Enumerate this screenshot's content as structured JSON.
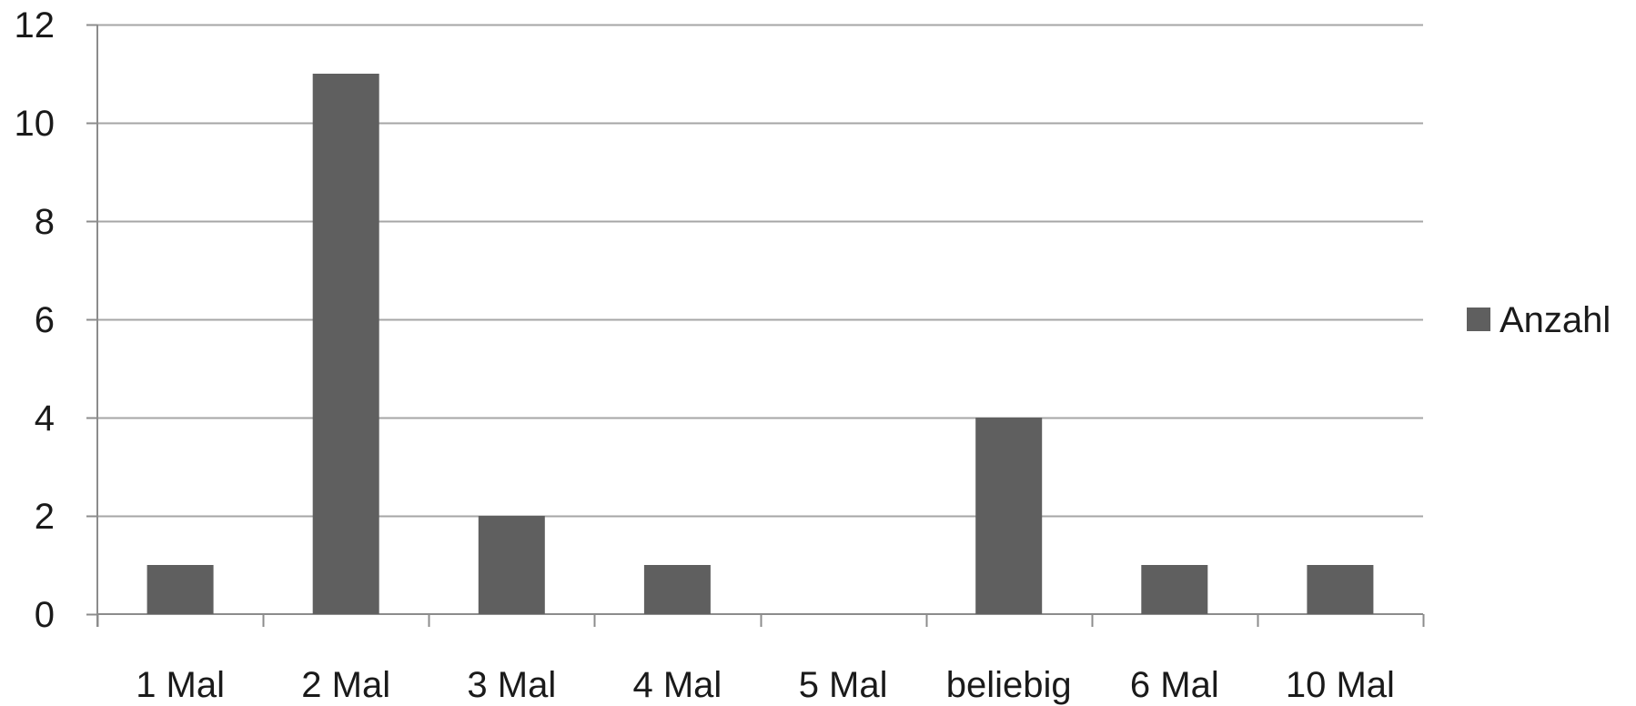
{
  "chart_data": {
    "type": "bar",
    "categories": [
      "1 Mal",
      "2 Mal",
      "3 Mal",
      "4 Mal",
      "5 Mal",
      "beliebig",
      "6 Mal",
      "10 Mal"
    ],
    "series": [
      {
        "name": "Anzahl",
        "values": [
          1,
          11,
          2,
          1,
          0,
          4,
          1,
          1
        ],
        "color": "#5f5f5f"
      }
    ],
    "yticks": [
      "0",
      "2",
      "4",
      "6",
      "8",
      "10",
      "12"
    ],
    "ylim": [
      0,
      12
    ],
    "grid": true,
    "legend_position": "right",
    "gridline_color": "#a6a6a6",
    "axis_color": "#8c8c8c"
  }
}
